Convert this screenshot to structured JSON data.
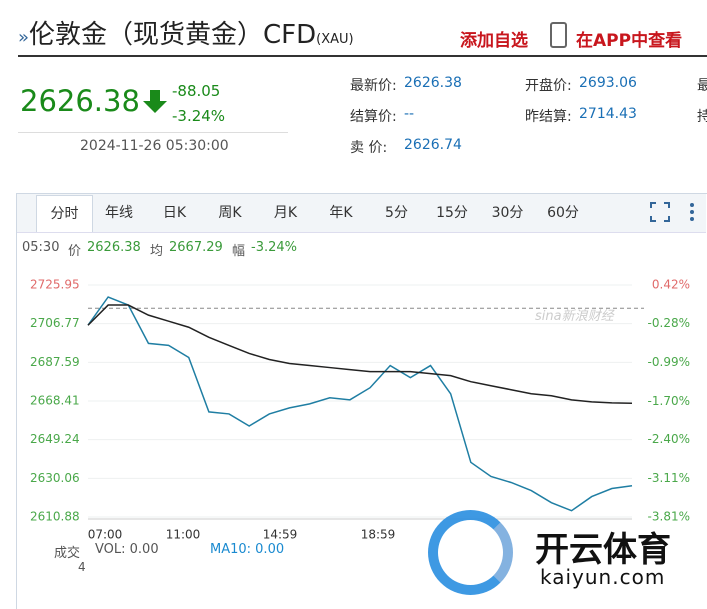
{
  "header": {
    "title": "伦敦金（现货黄金）CFD",
    "code": "(XAU)",
    "actions": [
      "添加自选",
      "在APP中查看"
    ]
  },
  "quote": {
    "price": "2626.38",
    "change": "-88.05",
    "percent": "-3.24%",
    "time": "2024-11-26 05:30:00"
  },
  "stats": [
    {
      "label": "最新价:",
      "value": "2626.38"
    },
    {
      "label": "开盘价:",
      "value": "2693.06"
    },
    {
      "label": "最"
    },
    {
      "label": "结算价:",
      "value": "--"
    },
    {
      "label": "昨结算:",
      "value": "2714.43"
    },
    {
      "label": "持"
    },
    {
      "label": "卖 价:",
      "value": "2626.74"
    }
  ],
  "tabs": [
    "分时",
    "年线",
    "日K",
    "周K",
    "月K",
    "年K",
    "5分",
    "15分",
    "30分",
    "60分"
  ],
  "info": {
    "time": "05:30",
    "items": [
      {
        "label": "价",
        "value": "2626.38"
      },
      {
        "label": "均",
        "value": "2667.29"
      },
      {
        "label": "幅",
        "value": "-3.24%"
      }
    ]
  },
  "chart_data": {
    "type": "line",
    "baseline": 2714.43,
    "ylim": [
      2610.88,
      2725.95
    ],
    "yticks": [
      2725.95,
      2706.77,
      2687.59,
      2668.41,
      2649.24,
      2630.06,
      2610.88
    ],
    "y2lim": [
      -3.81,
      0.42
    ],
    "y2ticks": [
      {
        "value": 0.42,
        "label": "0.42%"
      },
      {
        "value": -0.28,
        "label": "-0.28%"
      },
      {
        "value": -0.99,
        "label": "-0.99%"
      },
      {
        "value": -1.7,
        "label": "-1.70%"
      },
      {
        "value": -2.4,
        "label": "-2.40%"
      },
      {
        "value": -3.11,
        "label": "-3.11%"
      },
      {
        "value": -3.81,
        "label": "-3.81%"
      }
    ],
    "xtick_labels": [
      "07:00",
      "11:00",
      "14:59",
      "18:59"
    ],
    "series": [
      {
        "color": "#1f7ea3",
        "values": [
          2706,
          2720,
          2716,
          2697,
          2696,
          2690,
          2663,
          2662,
          2656,
          2662,
          2665,
          2667,
          2670,
          2669,
          2675,
          2686,
          2680,
          2686,
          2672,
          2638,
          2631,
          2628,
          2624,
          2618,
          2614,
          2621,
          2625,
          2626.38
        ]
      },
      {
        "color": "#222222",
        "values": [
          2706,
          2716,
          2716,
          2711,
          2708,
          2705,
          2700,
          2696,
          2692,
          2689,
          2687,
          2686,
          2685,
          2684,
          2683,
          2683,
          2683,
          2682,
          2681,
          2678,
          2676,
          2674,
          2672,
          2671,
          2669,
          2668,
          2667.5,
          2667.29
        ]
      }
    ]
  },
  "volume": {
    "label": "成交",
    "vol": "VOL: 0.00",
    "ma": "MA10: 0.00",
    "tick": "4"
  },
  "watermarks": [
    "sina新浪财经",
    "开云体育",
    "kaiyun.com"
  ]
}
